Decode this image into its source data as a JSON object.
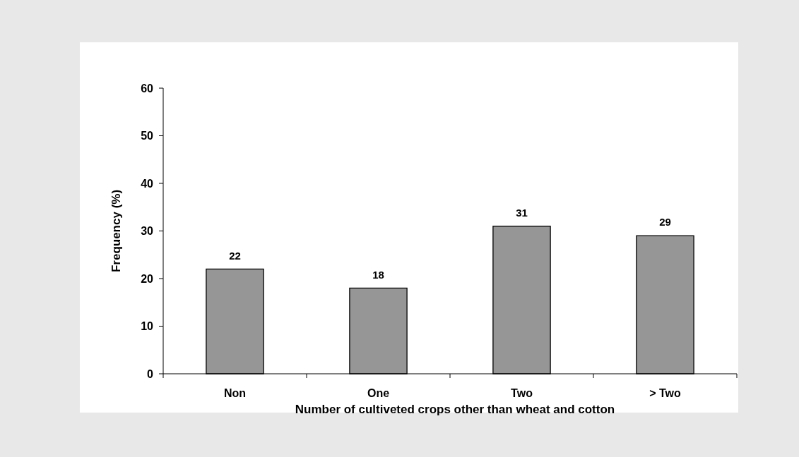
{
  "chart_data": {
    "type": "bar",
    "xlabel": "Number of cultiveted crops other than wheat and cotton",
    "ylabel": "Frequency (%)",
    "categories": [
      "Non",
      "One",
      "Two",
      "> Two"
    ],
    "values": [
      22,
      18,
      31,
      29
    ],
    "color": "#969696",
    "ylim": [
      0,
      60
    ],
    "yticks": [
      0,
      10,
      20,
      30,
      40,
      50,
      60
    ],
    "grid": false,
    "data_labels": true
  }
}
